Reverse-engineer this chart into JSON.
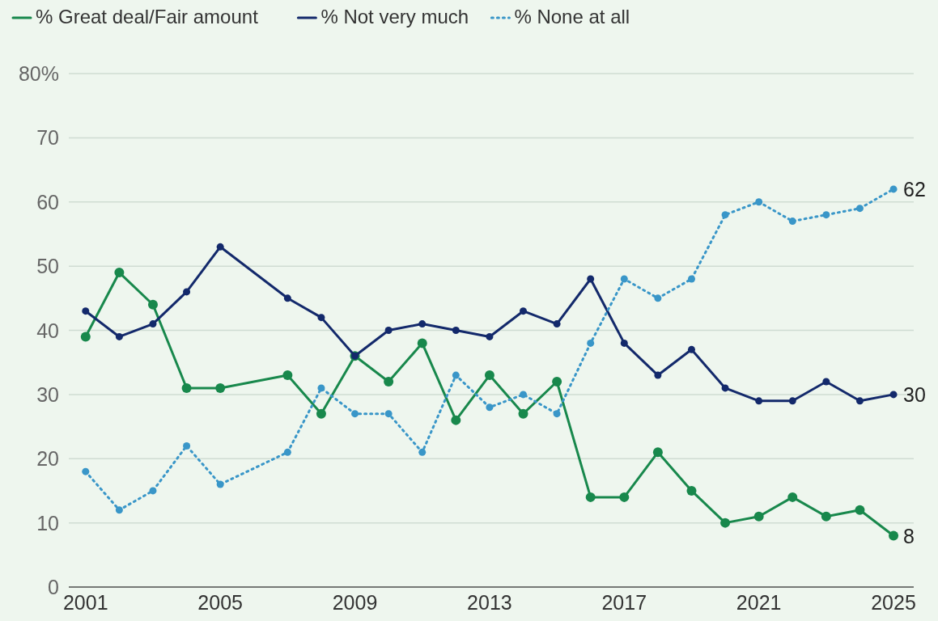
{
  "chart_data": {
    "type": "line",
    "x": [
      2001,
      2002,
      2003,
      2004,
      2005,
      2007,
      2008,
      2009,
      2010,
      2011,
      2012,
      2013,
      2014,
      2015,
      2016,
      2017,
      2018,
      2019,
      2020,
      2021,
      2022,
      2023,
      2024,
      2025
    ],
    "series": [
      {
        "name": "% Great deal/Fair amount",
        "color": "#18884c",
        "line_style": "solid",
        "values": [
          39,
          49,
          44,
          31,
          31,
          33,
          27,
          36,
          32,
          38,
          26,
          33,
          27,
          32,
          14,
          14,
          21,
          15,
          10,
          11,
          14,
          11,
          12,
          8
        ],
        "value_labels": [
          null,
          null,
          null,
          null,
          null,
          null,
          null,
          null,
          null,
          null,
          null,
          null,
          null,
          null,
          null,
          null,
          null,
          null,
          null,
          null,
          null,
          null,
          null,
          "8"
        ]
      },
      {
        "name": "% Not very much",
        "color": "#13296b",
        "line_style": "solid",
        "values": [
          43,
          39,
          41,
          46,
          53,
          45,
          42,
          36,
          40,
          41,
          40,
          39,
          43,
          41,
          48,
          38,
          33,
          37,
          31,
          29,
          29,
          32,
          29,
          30
        ],
        "value_labels": [
          null,
          null,
          null,
          null,
          null,
          null,
          null,
          null,
          null,
          null,
          null,
          null,
          null,
          null,
          null,
          null,
          null,
          null,
          null,
          null,
          null,
          null,
          null,
          "30"
        ]
      },
      {
        "name": "% None at all",
        "color": "#3996c8",
        "line_style": "dotted",
        "values": [
          18,
          12,
          15,
          22,
          16,
          21,
          31,
          27,
          27,
          21,
          33,
          28,
          30,
          27,
          38,
          48,
          45,
          48,
          58,
          60,
          57,
          58,
          59,
          62
        ],
        "value_labels": [
          null,
          null,
          null,
          null,
          null,
          null,
          null,
          null,
          null,
          null,
          null,
          null,
          null,
          null,
          null,
          null,
          null,
          null,
          null,
          null,
          null,
          null,
          null,
          "62"
        ]
      }
    ],
    "xlim": [
      2000.5,
      2025.6
    ],
    "xticks": [
      2001,
      2005,
      2009,
      2013,
      2017,
      2021,
      2025
    ],
    "ylim": [
      0,
      80
    ],
    "yticks": [
      0,
      10,
      20,
      30,
      40,
      50,
      60,
      70,
      {
        "value": 80,
        "label": "80%"
      }
    ],
    "grid": "y",
    "legend": "top left",
    "marker": "circle"
  }
}
